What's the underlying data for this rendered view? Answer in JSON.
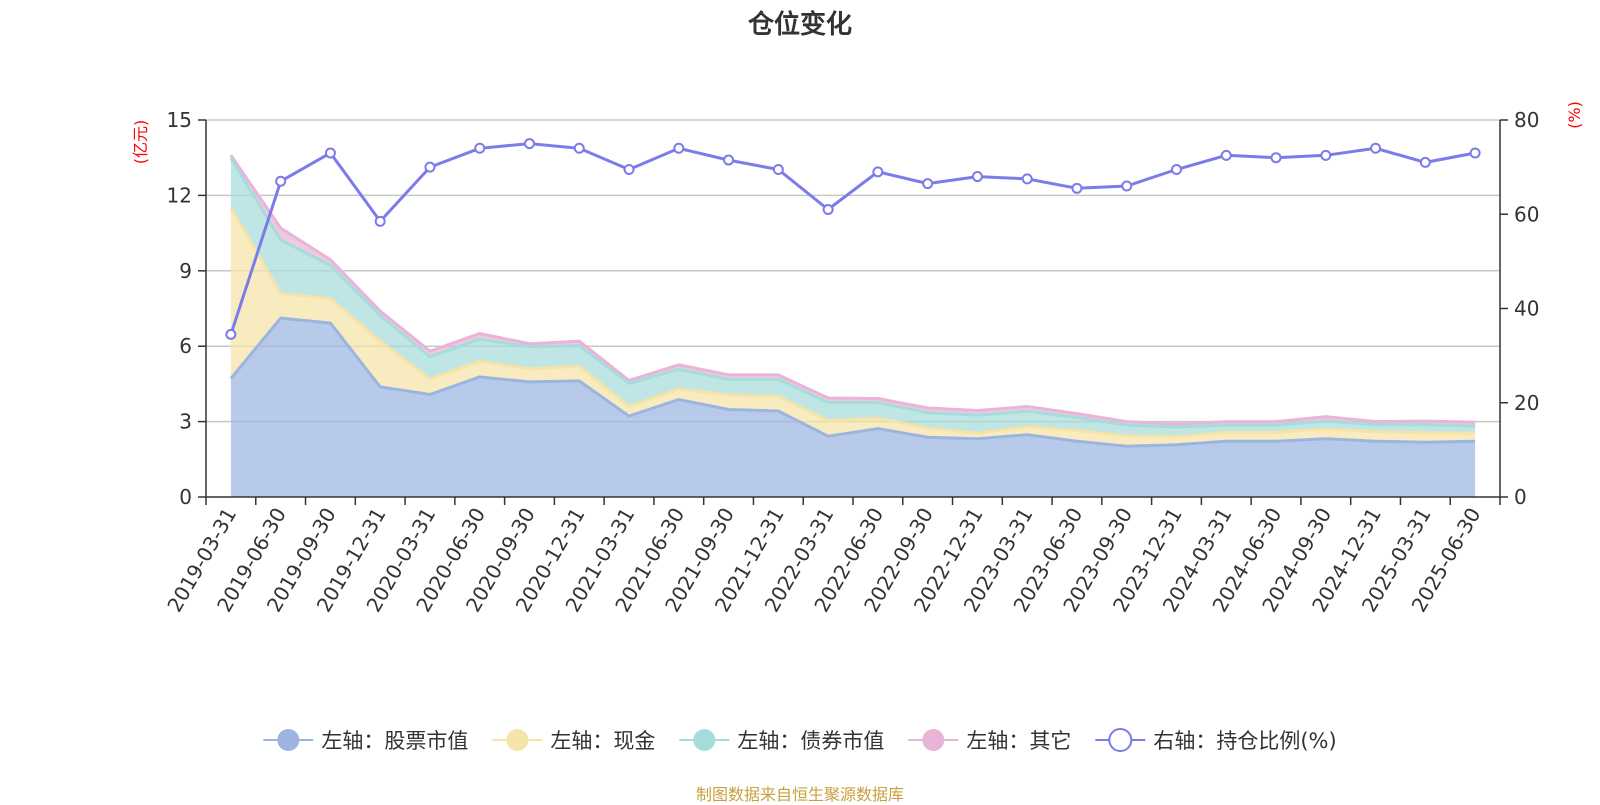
{
  "title": "仓位变化",
  "source_note": "制图数据来自恒生聚源数据库",
  "chart_data": {
    "type": "area",
    "title": "仓位变化",
    "x": [
      "2019-03-31",
      "2019-06-30",
      "2019-09-30",
      "2019-12-31",
      "2020-03-31",
      "2020-06-30",
      "2020-09-30",
      "2020-12-31",
      "2021-03-31",
      "2021-06-30",
      "2021-09-30",
      "2021-12-31",
      "2022-03-31",
      "2022-06-30",
      "2022-09-30",
      "2022-12-31",
      "2023-03-31",
      "2023-06-30",
      "2023-09-30",
      "2023-12-31",
      "2024-03-31",
      "2024-06-30",
      "2024-09-30",
      "2024-12-31",
      "2025-03-31",
      "2025-06-30"
    ],
    "left_axis": {
      "unit": "(亿元)",
      "ylim": [
        0,
        15
      ],
      "ticks": [
        "0",
        "3",
        "6",
        "9",
        "12",
        "15"
      ]
    },
    "right_axis": {
      "unit": "(%)",
      "ylim": [
        0,
        80
      ],
      "ticks": [
        "0",
        "20",
        "40",
        "60",
        "80"
      ]
    },
    "series": [
      {
        "name": "左轴：股票市值",
        "axis": "left",
        "kind": "stacked-area",
        "color": "#9cb5e0",
        "values": [
          4.72,
          7.12,
          6.92,
          4.38,
          4.08,
          4.78,
          4.58,
          4.62,
          3.22,
          3.88,
          3.48,
          3.42,
          2.42,
          2.72,
          2.38,
          2.32,
          2.48,
          2.22,
          2.02,
          2.08,
          2.22,
          2.22,
          2.32,
          2.22,
          2.18,
          2.22
        ]
      },
      {
        "name": "左轴：现金",
        "axis": "left",
        "kind": "stacked-area",
        "color": "#f5e3a8",
        "values": [
          6.78,
          0.98,
          0.98,
          1.82,
          0.62,
          0.62,
          0.52,
          0.58,
          0.38,
          0.42,
          0.58,
          0.58,
          0.62,
          0.42,
          0.36,
          0.22,
          0.32,
          0.42,
          0.42,
          0.32,
          0.36,
          0.36,
          0.38,
          0.38,
          0.38,
          0.32
        ]
      },
      {
        "name": "左轴：债券市值",
        "axis": "left",
        "kind": "stacked-area",
        "color": "#a6dcd9",
        "values": [
          1.98,
          2.12,
          1.32,
          1.02,
          0.88,
          0.88,
          0.88,
          0.82,
          0.92,
          0.78,
          0.62,
          0.68,
          0.72,
          0.62,
          0.62,
          0.72,
          0.62,
          0.52,
          0.42,
          0.38,
          0.28,
          0.28,
          0.32,
          0.28,
          0.32,
          0.28
        ]
      },
      {
        "name": "左轴：其它",
        "axis": "left",
        "kind": "stacked-area",
        "color": "#e8b4d8",
        "values": [
          0.12,
          0.48,
          0.22,
          0.18,
          0.22,
          0.22,
          0.12,
          0.18,
          0.12,
          0.18,
          0.18,
          0.18,
          0.18,
          0.16,
          0.18,
          0.18,
          0.18,
          0.16,
          0.14,
          0.12,
          0.14,
          0.14,
          0.18,
          0.12,
          0.14,
          0.16
        ]
      },
      {
        "name": "右轴：持仓比例(%)",
        "axis": "right",
        "kind": "line",
        "color": "#7b7bea",
        "values": [
          34.5,
          67.0,
          73.0,
          58.5,
          70.0,
          74.0,
          75.0,
          74.0,
          69.5,
          74.0,
          71.5,
          69.5,
          61.0,
          69.0,
          66.5,
          68.0,
          67.5,
          65.5,
          66.0,
          69.5,
          72.5,
          72.0,
          72.5,
          74.0,
          71.0,
          73.0
        ]
      }
    ]
  }
}
